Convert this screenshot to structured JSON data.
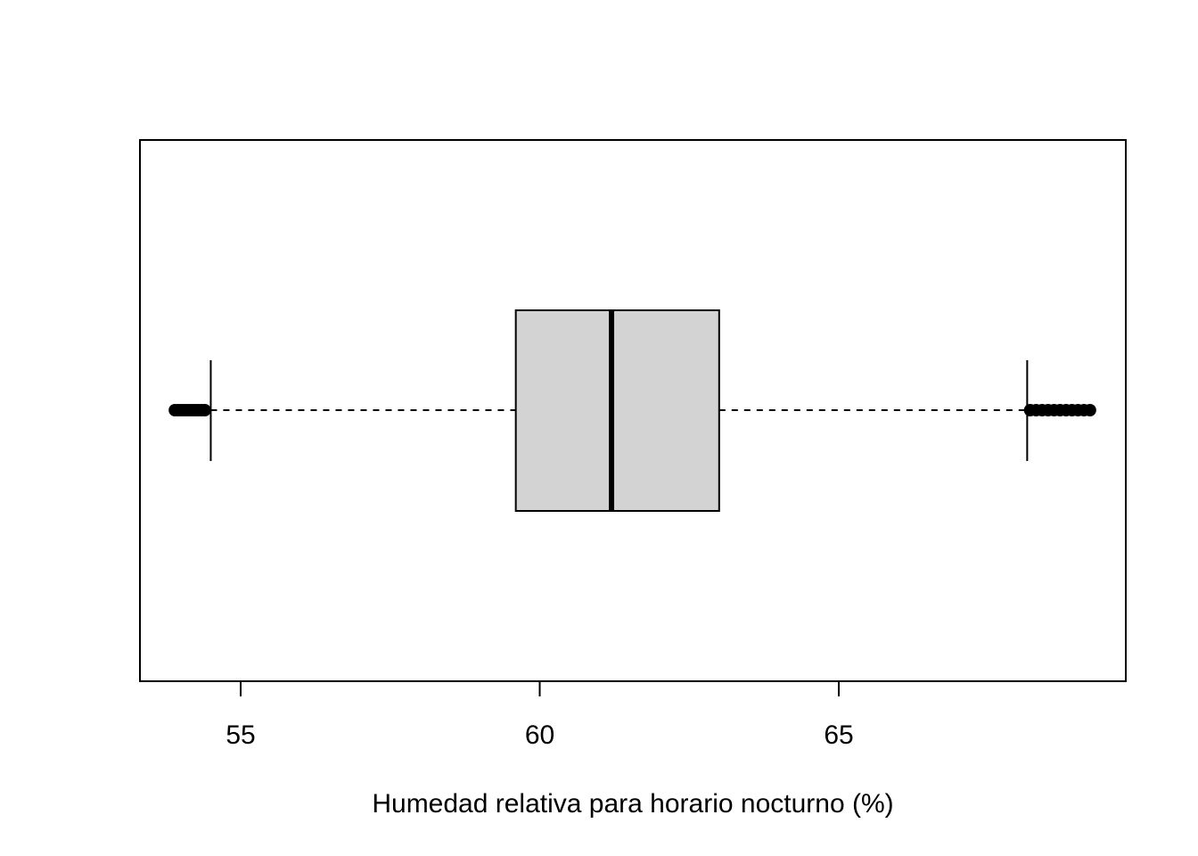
{
  "chart_data": {
    "type": "boxplot",
    "orientation": "horizontal",
    "title": "",
    "xlabel": "Humedad relativa para horario nocturno (%)",
    "ylabel": "",
    "xlim": [
      53.3,
      69.8
    ],
    "x_ticks": [
      55,
      60,
      65
    ],
    "x_tick_labels": [
      "55",
      "60",
      "65"
    ],
    "grid": false,
    "box": {
      "whisker_low": 54.5,
      "q1": 59.6,
      "median": 61.2,
      "q3": 63.0,
      "whisker_high": 68.15
    },
    "outliers_low": [
      53.9,
      53.95,
      54.0,
      54.05,
      54.1,
      54.15,
      54.2,
      54.25,
      54.3,
      54.35,
      54.4
    ],
    "outliers_high": [
      68.2,
      68.3,
      68.4,
      68.5,
      68.6,
      68.7,
      68.8,
      68.9,
      69.0,
      69.1,
      69.2
    ],
    "colors": {
      "box_fill": "#d3d3d3",
      "stroke": "#000000",
      "background": "#ffffff"
    }
  }
}
